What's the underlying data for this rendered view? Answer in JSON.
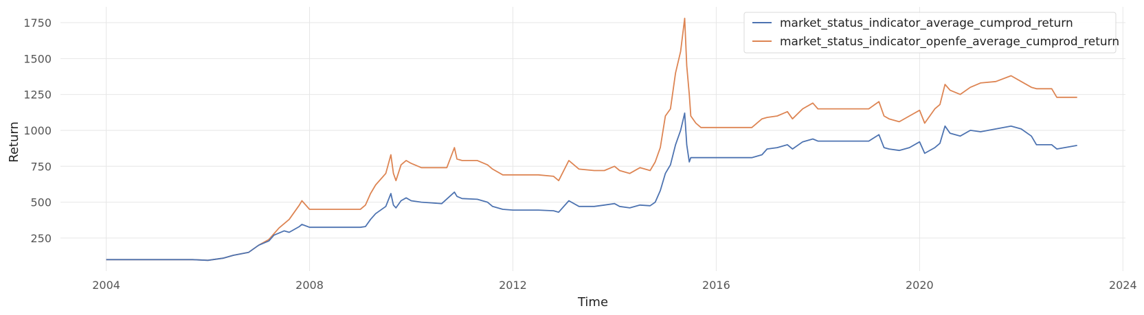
{
  "chart_data": {
    "type": "line",
    "title": "",
    "xlabel": "Time",
    "ylabel": "Return",
    "xlim": [
      2003.1,
      2024.05
    ],
    "ylim": [
      20,
      1860
    ],
    "xticks": [
      2004,
      2008,
      2012,
      2016,
      2020,
      2024
    ],
    "xtick_labels": [
      "2004",
      "2008",
      "2012",
      "2016",
      "2020",
      "2024"
    ],
    "yticks": [
      250,
      500,
      750,
      1000,
      1250,
      1500,
      1750
    ],
    "ytick_labels": [
      "250",
      "500",
      "750",
      "1000",
      "1250",
      "1500",
      "1750"
    ],
    "grid": true,
    "legend_position": "top-right",
    "series": [
      {
        "name": "market_status_indicator_average_cumprod_return",
        "color": "#4c72b0",
        "x": [
          2004.0,
          2005.0,
          2005.7,
          2006.0,
          2006.3,
          2006.5,
          2006.8,
          2007.0,
          2007.2,
          2007.3,
          2007.5,
          2007.6,
          2007.8,
          2007.85,
          2008.0,
          2009.0,
          2009.1,
          2009.2,
          2009.3,
          2009.5,
          2009.6,
          2009.65,
          2009.7,
          2009.8,
          2009.9,
          2010.0,
          2010.2,
          2010.4,
          2010.6,
          2010.85,
          2010.9,
          2011.0,
          2011.3,
          2011.5,
          2011.6,
          2011.8,
          2012.0,
          2012.5,
          2012.8,
          2012.9,
          2013.1,
          2013.3,
          2013.6,
          2013.8,
          2014.0,
          2014.1,
          2014.3,
          2014.5,
          2014.7,
          2014.8,
          2014.9,
          2015.0,
          2015.1,
          2015.2,
          2015.3,
          2015.38,
          2015.42,
          2015.47,
          2015.5,
          2015.6,
          2016.0,
          2016.7,
          2016.9,
          2017.0,
          2017.2,
          2017.4,
          2017.5,
          2017.7,
          2017.9,
          2018.0,
          2019.0,
          2019.2,
          2019.3,
          2019.4,
          2019.6,
          2019.8,
          2020.0,
          2020.1,
          2020.3,
          2020.4,
          2020.5,
          2020.6,
          2020.8,
          2021.0,
          2021.2,
          2021.5,
          2021.8,
          2022.0,
          2022.2,
          2022.3,
          2022.5,
          2022.6,
          2022.7,
          2023.1
        ],
        "y": [
          100,
          100,
          100,
          95,
          110,
          130,
          150,
          200,
          230,
          270,
          300,
          290,
          330,
          345,
          325,
          325,
          330,
          380,
          420,
          470,
          560,
          480,
          460,
          510,
          530,
          510,
          500,
          495,
          490,
          570,
          540,
          525,
          520,
          500,
          470,
          450,
          445,
          445,
          440,
          430,
          510,
          470,
          470,
          480,
          490,
          470,
          460,
          480,
          475,
          500,
          580,
          700,
          760,
          900,
          1000,
          1120,
          900,
          780,
          810,
          810,
          810,
          810,
          830,
          870,
          880,
          900,
          870,
          920,
          940,
          925,
          925,
          970,
          880,
          870,
          860,
          880,
          920,
          840,
          880,
          910,
          1030,
          980,
          960,
          1000,
          990,
          1010,
          1030,
          1010,
          960,
          900,
          900,
          900,
          870,
          895
        ]
      },
      {
        "name": "market_status_indicator_openfe_average_cumprod_return",
        "color": "#dd8452",
        "x": [
          2004.0,
          2005.0,
          2005.7,
          2006.0,
          2006.3,
          2006.5,
          2006.8,
          2007.0,
          2007.2,
          2007.4,
          2007.6,
          2007.8,
          2007.85,
          2008.0,
          2009.0,
          2009.1,
          2009.2,
          2009.3,
          2009.5,
          2009.6,
          2009.65,
          2009.7,
          2009.8,
          2009.9,
          2010.0,
          2010.2,
          2010.5,
          2010.7,
          2010.85,
          2010.9,
          2011.0,
          2011.3,
          2011.5,
          2011.6,
          2011.8,
          2012.0,
          2012.5,
          2012.8,
          2012.9,
          2013.1,
          2013.3,
          2013.6,
          2013.8,
          2014.0,
          2014.1,
          2014.3,
          2014.5,
          2014.7,
          2014.8,
          2014.9,
          2015.0,
          2015.1,
          2015.2,
          2015.3,
          2015.38,
          2015.42,
          2015.47,
          2015.5,
          2015.6,
          2015.7,
          2016.0,
          2016.7,
          2016.9,
          2017.0,
          2017.2,
          2017.4,
          2017.5,
          2017.7,
          2017.9,
          2018.0,
          2019.0,
          2019.2,
          2019.3,
          2019.4,
          2019.6,
          2019.8,
          2020.0,
          2020.1,
          2020.3,
          2020.4,
          2020.5,
          2020.6,
          2020.8,
          2021.0,
          2021.2,
          2021.5,
          2021.8,
          2022.0,
          2022.2,
          2022.3,
          2022.5,
          2022.6,
          2022.7,
          2023.1
        ],
        "y": [
          100,
          100,
          100,
          95,
          110,
          130,
          150,
          200,
          240,
          320,
          380,
          480,
          510,
          450,
          450,
          480,
          560,
          620,
          700,
          830,
          700,
          650,
          760,
          790,
          770,
          740,
          740,
          740,
          880,
          800,
          790,
          790,
          760,
          730,
          690,
          690,
          690,
          680,
          650,
          790,
          730,
          720,
          720,
          750,
          720,
          700,
          740,
          720,
          780,
          880,
          1100,
          1150,
          1400,
          1550,
          1780,
          1450,
          1250,
          1100,
          1050,
          1020,
          1020,
          1020,
          1080,
          1090,
          1100,
          1130,
          1080,
          1150,
          1190,
          1150,
          1150,
          1200,
          1100,
          1080,
          1060,
          1100,
          1140,
          1050,
          1150,
          1180,
          1320,
          1280,
          1250,
          1300,
          1330,
          1340,
          1380,
          1340,
          1300,
          1290,
          1290,
          1290,
          1230,
          1230
        ]
      }
    ]
  }
}
